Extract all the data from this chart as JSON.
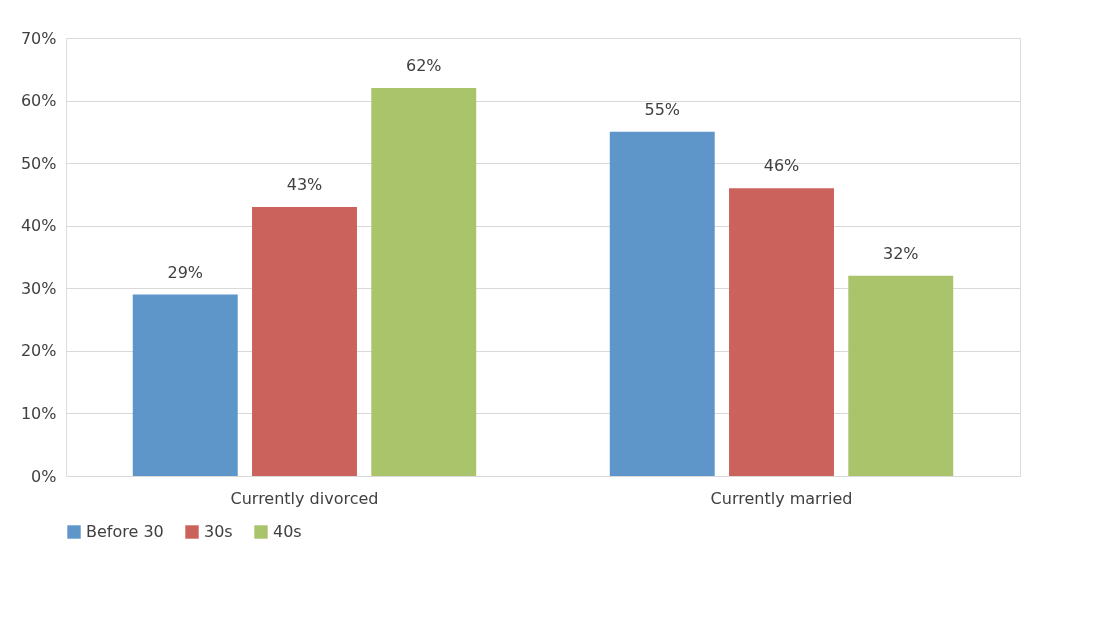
{
  "chart_data": {
    "type": "bar",
    "categories": [
      "Currently divorced",
      "Currently married"
    ],
    "series": [
      {
        "name": "Before 30",
        "color": "#5f96c9",
        "values": [
          29,
          55
        ],
        "value_labels": [
          "29%",
          "55%"
        ]
      },
      {
        "name": "30s",
        "color": "#cc625c",
        "values": [
          43,
          46
        ],
        "value_labels": [
          "43%",
          "46%"
        ]
      },
      {
        "name": "40s",
        "color": "#a9c46b",
        "values": [
          62,
          32
        ],
        "value_labels": [
          "62%",
          "32%"
        ]
      }
    ],
    "ylim": [
      0,
      70
    ],
    "yticks": [
      {
        "value": 0,
        "label": "0%"
      },
      {
        "value": 10,
        "label": "10%"
      },
      {
        "value": 20,
        "label": "20%"
      },
      {
        "value": 30,
        "label": "30%"
      },
      {
        "value": 40,
        "label": "40%"
      },
      {
        "value": 50,
        "label": "50%"
      },
      {
        "value": 60,
        "label": "60%"
      },
      {
        "value": 70,
        "label": "70%"
      }
    ],
    "grid": "y",
    "legend": "bottom"
  }
}
